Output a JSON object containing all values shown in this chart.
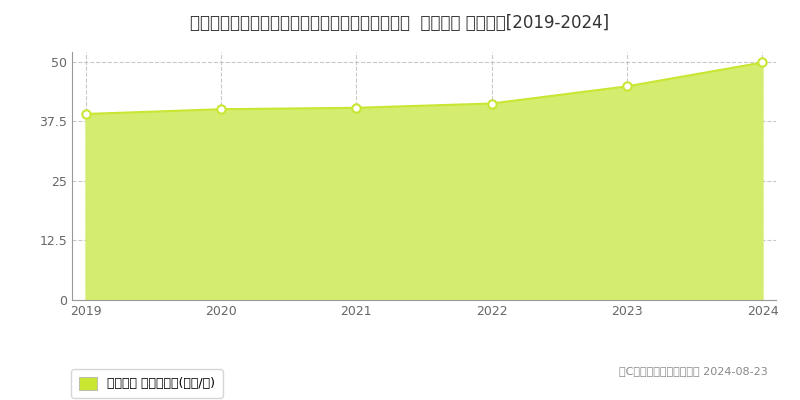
{
  "title": "兵庫県明石市大久保町ゆりのき通２丁目１５番１  地価公示 地価推移[2019-2024]",
  "years": [
    2019,
    2020,
    2021,
    2022,
    2023,
    2024
  ],
  "values": [
    39.0,
    40.0,
    40.3,
    41.2,
    44.8,
    49.8
  ],
  "ylim": [
    0,
    52
  ],
  "yticks": [
    0,
    12.5,
    25,
    37.5,
    50
  ],
  "line_color": "#c8e632",
  "fill_color": "#d4ed6e",
  "fill_alpha": 1.0,
  "marker_face": "white",
  "marker_size": 6,
  "grid_color": "#bbbbbb",
  "bg_color": "#ffffff",
  "legend_label": "地価公示 平均坪単価(万円/坪)",
  "legend_marker_color": "#c8e632",
  "copyright_text": "（C）土地価格ドットコム 2024-08-23",
  "title_fontsize": 12,
  "axis_fontsize": 9,
  "legend_fontsize": 9,
  "copyright_fontsize": 8
}
